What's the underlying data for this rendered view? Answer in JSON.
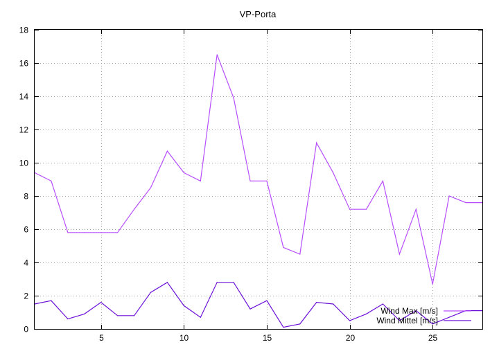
{
  "chart_data": {
    "type": "line",
    "title": "VP-Porta",
    "xlabel": "",
    "ylabel": "",
    "xlim": [
      1,
      28
    ],
    "ylim": [
      0,
      18
    ],
    "xticks": [
      5,
      10,
      15,
      20,
      25
    ],
    "yticks": [
      0,
      2,
      4,
      6,
      8,
      10,
      12,
      14,
      16,
      18
    ],
    "grid": true,
    "legend_position": "bottom-right",
    "x": [
      1,
      2,
      3,
      4,
      5,
      6,
      7,
      8,
      9,
      10,
      11,
      12,
      13,
      14,
      15,
      16,
      17,
      18,
      19,
      20,
      21,
      22,
      23,
      24,
      25,
      26,
      27,
      28
    ],
    "series": [
      {
        "name": "Wind Max [m/s]",
        "color": "#b74dff",
        "values": [
          9.4,
          8.9,
          5.8,
          5.8,
          5.8,
          5.8,
          7.2,
          8.5,
          10.7,
          9.4,
          8.9,
          16.5,
          13.9,
          8.9,
          8.9,
          4.9,
          4.5,
          11.2,
          9.4,
          7.2,
          7.2,
          8.9,
          4.5,
          7.2,
          2.7,
          8.0,
          7.6,
          7.6
        ]
      },
      {
        "name": "Wind Mittel [m/s]",
        "color": "#6a0fd8",
        "values": [
          1.5,
          1.7,
          0.6,
          0.9,
          1.6,
          0.8,
          0.8,
          2.2,
          2.8,
          1.4,
          0.7,
          2.8,
          2.8,
          1.2,
          1.7,
          0.1,
          0.3,
          1.6,
          1.5,
          0.5,
          0.9,
          1.5,
          0.5,
          1.1,
          0.3,
          0.7,
          1.1,
          1.1
        ]
      }
    ]
  }
}
